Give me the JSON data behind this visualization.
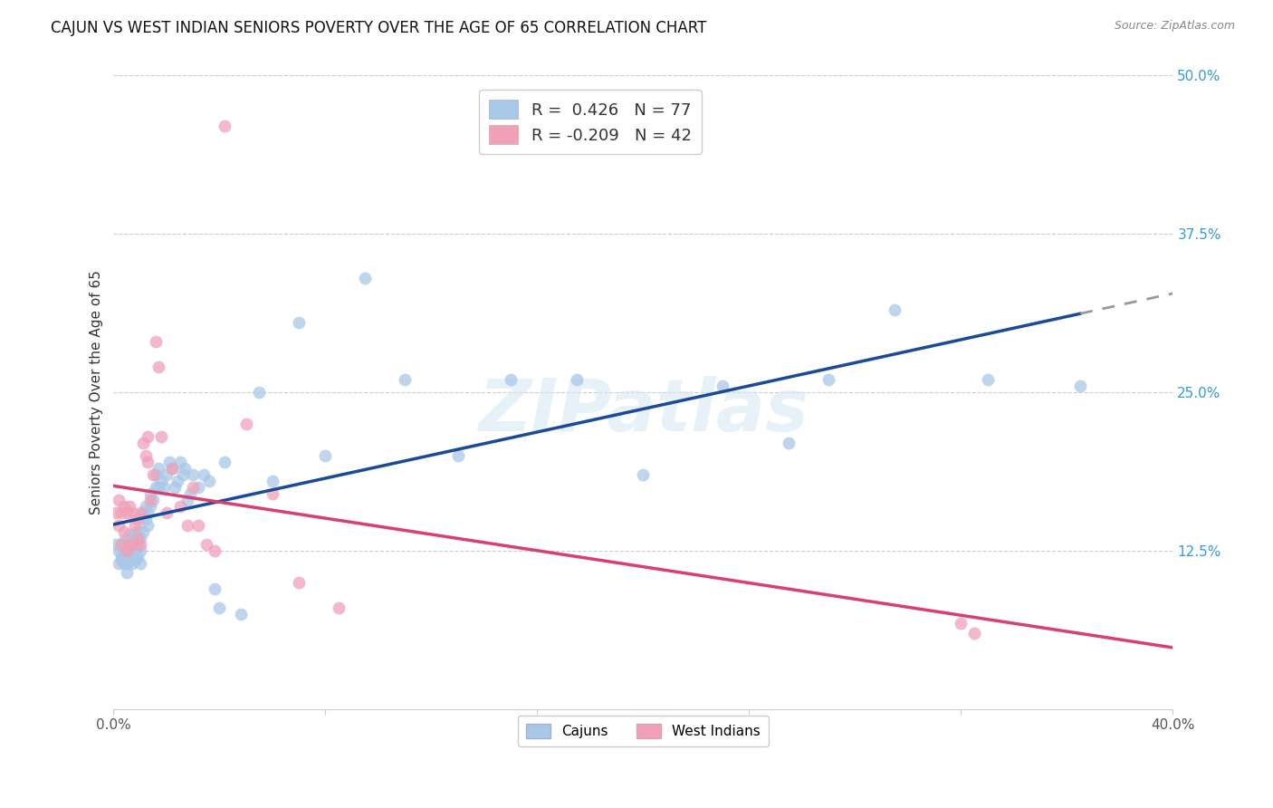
{
  "title": "CAJUN VS WEST INDIAN SENIORS POVERTY OVER THE AGE OF 65 CORRELATION CHART",
  "source": "Source: ZipAtlas.com",
  "ylabel": "Seniors Poverty Over the Age of 65",
  "xlim": [
    0.0,
    0.4
  ],
  "ylim": [
    0.0,
    0.5
  ],
  "cajun_R": 0.426,
  "cajun_N": 77,
  "westindian_R": -0.209,
  "westindian_N": 42,
  "cajun_color": "#a8c8e8",
  "cajun_line_color": "#1a4a9a",
  "westindian_color": "#f0a0b8",
  "westindian_line_color": "#d84070",
  "background_color": "#ffffff",
  "grid_color": "#cccccc",
  "cajun_x": [
    0.001,
    0.002,
    0.002,
    0.003,
    0.003,
    0.003,
    0.004,
    0.004,
    0.004,
    0.005,
    0.005,
    0.005,
    0.005,
    0.006,
    0.006,
    0.006,
    0.007,
    0.007,
    0.007,
    0.008,
    0.008,
    0.008,
    0.009,
    0.009,
    0.009,
    0.01,
    0.01,
    0.01,
    0.011,
    0.011,
    0.012,
    0.012,
    0.013,
    0.013,
    0.014,
    0.014,
    0.015,
    0.016,
    0.016,
    0.017,
    0.017,
    0.018,
    0.019,
    0.02,
    0.021,
    0.022,
    0.023,
    0.024,
    0.025,
    0.026,
    0.027,
    0.028,
    0.029,
    0.03,
    0.032,
    0.034,
    0.036,
    0.038,
    0.04,
    0.042,
    0.048,
    0.055,
    0.06,
    0.07,
    0.08,
    0.095,
    0.11,
    0.13,
    0.15,
    0.175,
    0.2,
    0.23,
    0.255,
    0.27,
    0.295,
    0.33,
    0.365
  ],
  "cajun_y": [
    0.13,
    0.125,
    0.115,
    0.12,
    0.13,
    0.118,
    0.115,
    0.125,
    0.133,
    0.12,
    0.125,
    0.115,
    0.108,
    0.118,
    0.128,
    0.138,
    0.115,
    0.125,
    0.135,
    0.118,
    0.128,
    0.138,
    0.12,
    0.13,
    0.14,
    0.115,
    0.125,
    0.135,
    0.14,
    0.155,
    0.15,
    0.16,
    0.145,
    0.155,
    0.16,
    0.17,
    0.165,
    0.175,
    0.185,
    0.175,
    0.19,
    0.18,
    0.175,
    0.185,
    0.195,
    0.19,
    0.175,
    0.18,
    0.195,
    0.185,
    0.19,
    0.165,
    0.17,
    0.185,
    0.175,
    0.185,
    0.18,
    0.095,
    0.08,
    0.195,
    0.075,
    0.25,
    0.18,
    0.305,
    0.2,
    0.34,
    0.26,
    0.2,
    0.26,
    0.26,
    0.185,
    0.255,
    0.21,
    0.26,
    0.315,
    0.26,
    0.255
  ],
  "westindian_x": [
    0.001,
    0.002,
    0.002,
    0.003,
    0.003,
    0.004,
    0.004,
    0.005,
    0.005,
    0.006,
    0.006,
    0.007,
    0.007,
    0.008,
    0.009,
    0.009,
    0.01,
    0.01,
    0.011,
    0.012,
    0.013,
    0.013,
    0.014,
    0.015,
    0.016,
    0.017,
    0.018,
    0.02,
    0.022,
    0.025,
    0.028,
    0.03,
    0.032,
    0.035,
    0.038,
    0.042,
    0.05,
    0.06,
    0.07,
    0.085,
    0.32,
    0.325
  ],
  "westindian_y": [
    0.155,
    0.145,
    0.165,
    0.13,
    0.155,
    0.14,
    0.16,
    0.125,
    0.155,
    0.13,
    0.16,
    0.13,
    0.155,
    0.145,
    0.135,
    0.15,
    0.13,
    0.155,
    0.21,
    0.2,
    0.195,
    0.215,
    0.165,
    0.185,
    0.29,
    0.27,
    0.215,
    0.155,
    0.19,
    0.16,
    0.145,
    0.175,
    0.145,
    0.13,
    0.125,
    0.46,
    0.225,
    0.17,
    0.1,
    0.08,
    0.068,
    0.06
  ],
  "title_fontsize": 12,
  "axis_label_fontsize": 11,
  "tick_fontsize": 11,
  "legend_fontsize": 13,
  "marker_size": 100,
  "ytick_color": "#3399dd",
  "xtick_color": "#555555"
}
